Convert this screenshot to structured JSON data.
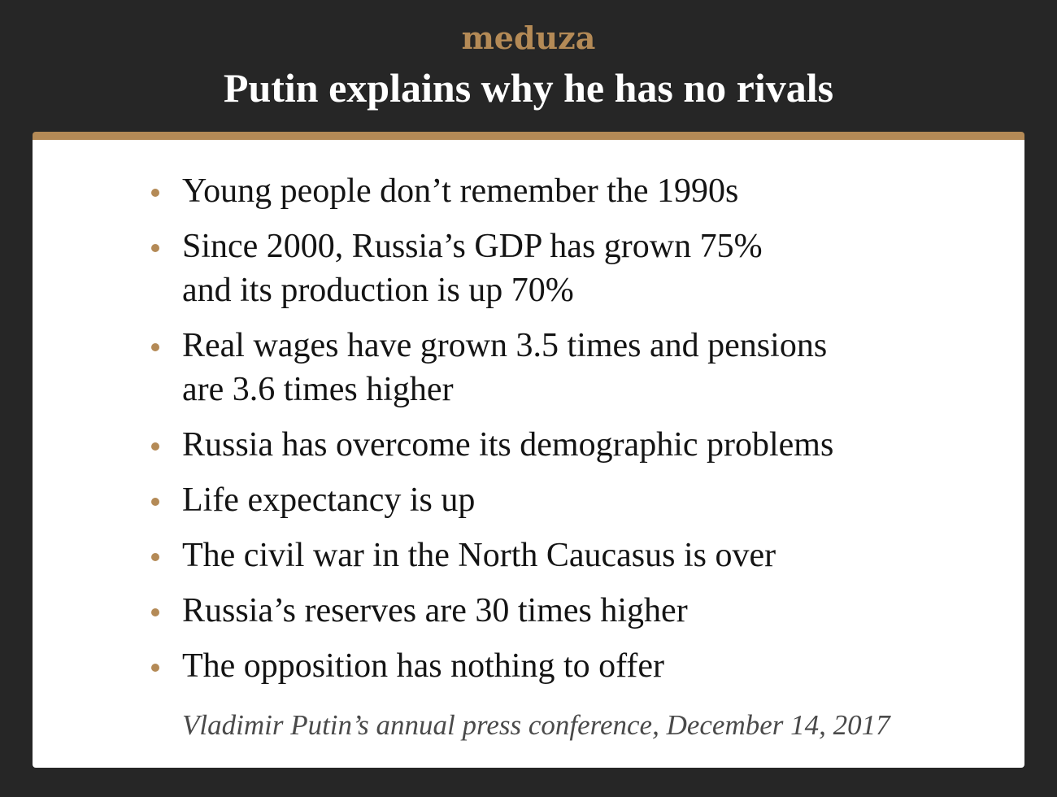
{
  "brand": {
    "logo_text": "meduza"
  },
  "header": {
    "title": "Putin explains why he has no rivals"
  },
  "colors": {
    "background": "#262626",
    "accent": "#b48a56",
    "card": "#ffffff",
    "text": "#141414"
  },
  "items": [
    {
      "text": "Young people don’t remember the 1990s"
    },
    {
      "text": "Since 2000, Russia’s GDP has grown 75%\nand its production is up 70%"
    },
    {
      "text": "Real wages have grown 3.5 times and pensions\nare 3.6 times higher"
    },
    {
      "text": "Russia has overcome its demographic problems"
    },
    {
      "text": "Life expectancy is up"
    },
    {
      "text": "The civil war in the North Caucasus is over"
    },
    {
      "text": "Russia’s reserves are 30 times higher"
    },
    {
      "text": "The opposition has nothing to offer"
    }
  ],
  "source": {
    "text": "Vladimir Putin’s annual press conference, December 14, 2017"
  }
}
